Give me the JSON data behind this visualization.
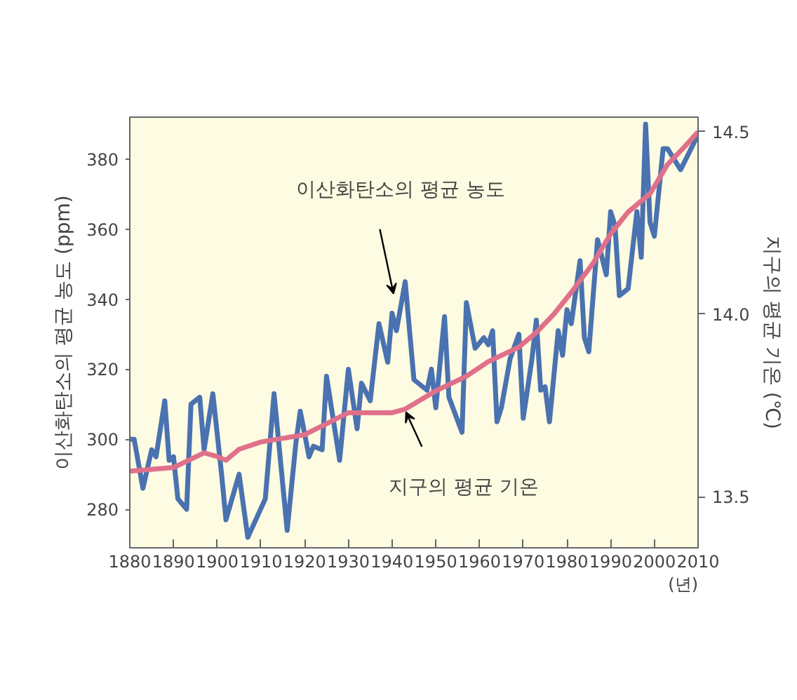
{
  "chart_data": {
    "type": "line",
    "ylabel": "이산화탄소의 평균 농도 (ppm)",
    "y2label": "지구의 평균 기온 (℃)",
    "xlabel": "(년)",
    "xlim": [
      1880,
      2010
    ],
    "xticks": [
      1880,
      1890,
      1900,
      1910,
      1920,
      1930,
      1940,
      1950,
      1960,
      1970,
      1980,
      1990,
      2000,
      2010
    ],
    "ylim": [
      269,
      392
    ],
    "yticks": [
      280,
      300,
      320,
      340,
      360,
      380
    ],
    "y2lim": [
      13.36,
      14.54
    ],
    "y2ticks": [
      {
        "value": 13.5,
        "label": "13.5"
      },
      {
        "value": 14.0,
        "label": "14.0"
      },
      {
        "value": 14.5,
        "label": "14.5"
      }
    ],
    "grid": false,
    "series": [
      {
        "color": "#4a72b0",
        "axis": "y",
        "x": [
          1880,
          1881,
          1883,
          1885,
          1886,
          1888,
          1889,
          1890,
          1891,
          1893,
          1894,
          1896,
          1897,
          1899,
          1901,
          1902,
          1905,
          1907,
          1911,
          1913,
          1916,
          1918,
          1919,
          1921,
          1922,
          1924,
          1925,
          1928,
          1930,
          1932,
          1933,
          1935,
          1937,
          1939,
          1940,
          1941,
          1943,
          1945,
          1948,
          1949,
          1950,
          1952,
          1953,
          1956,
          1957,
          1959,
          1961,
          1962,
          1963,
          1964,
          1965,
          1967,
          1969,
          1970,
          1972,
          1973,
          1974,
          1975,
          1976,
          1978,
          1979,
          1980,
          1981,
          1983,
          1984,
          1985,
          1987,
          1989,
          1990,
          1991,
          1992,
          1994,
          1996,
          1997,
          1998,
          1999,
          2000,
          2002,
          2003,
          2006,
          2010
        ],
        "values": [
          300,
          300,
          286,
          297,
          295,
          311,
          294,
          295,
          283,
          280,
          310,
          312,
          297,
          313,
          290,
          277,
          290,
          272,
          283,
          313,
          274,
          299,
          308,
          295,
          298,
          297,
          318,
          294,
          320,
          303,
          316,
          311,
          333,
          322,
          336,
          331,
          345,
          317,
          314,
          320,
          309,
          335,
          312,
          302,
          339,
          326,
          329,
          327,
          331,
          305,
          309,
          323,
          330,
          306,
          323,
          334,
          314,
          315,
          305,
          331,
          324,
          337,
          333,
          351,
          329,
          325,
          357,
          347,
          365,
          361,
          341,
          343,
          365,
          352,
          390,
          362,
          358,
          383,
          383,
          377,
          387
        ]
      },
      {
        "color": "#e0708a",
        "axis": "y2",
        "x": [
          1880,
          1890,
          1897,
          1900,
          1902,
          1905,
          1910,
          1920,
          1925,
          1930,
          1940,
          1943,
          1950,
          1957,
          1962,
          1969,
          1973,
          1977,
          1981,
          1986,
          1990,
          1994,
          1999,
          2003,
          2007,
          2010
        ],
        "values": [
          13.57,
          13.58,
          13.62,
          13.61,
          13.6,
          13.63,
          13.65,
          13.67,
          13.7,
          13.73,
          13.73,
          13.74,
          13.79,
          13.83,
          13.87,
          13.91,
          13.95,
          14.0,
          14.06,
          14.14,
          14.22,
          14.28,
          14.33,
          14.41,
          14.46,
          14.5
        ]
      }
    ],
    "annotations": [
      "이산화탄소의 평균 농도",
      "지구의 평균 기온"
    ]
  }
}
